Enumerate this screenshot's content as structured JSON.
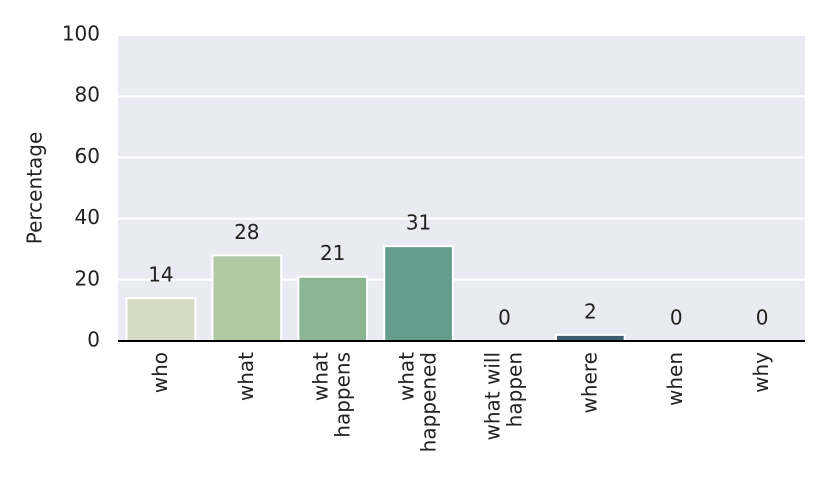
{
  "chart_data": {
    "type": "bar",
    "y_label": "Percentage",
    "categories": [
      "who",
      "what",
      "what\nhappens",
      "what\nhappened",
      "what will\nhappen",
      "where",
      "when",
      "why"
    ],
    "values": [
      14,
      28,
      21,
      31,
      0,
      2,
      0,
      0
    ],
    "colors": [
      "#d6dbc3",
      "#afc9a4",
      "#8bb593",
      "#669c8b",
      "#4f7e80",
      "#3d5d6e",
      "#2c3f55",
      "#1f2a40"
    ],
    "ylim": [
      0,
      100
    ],
    "yticks": [
      0,
      20,
      40,
      60,
      80,
      100
    ],
    "grid": true
  }
}
